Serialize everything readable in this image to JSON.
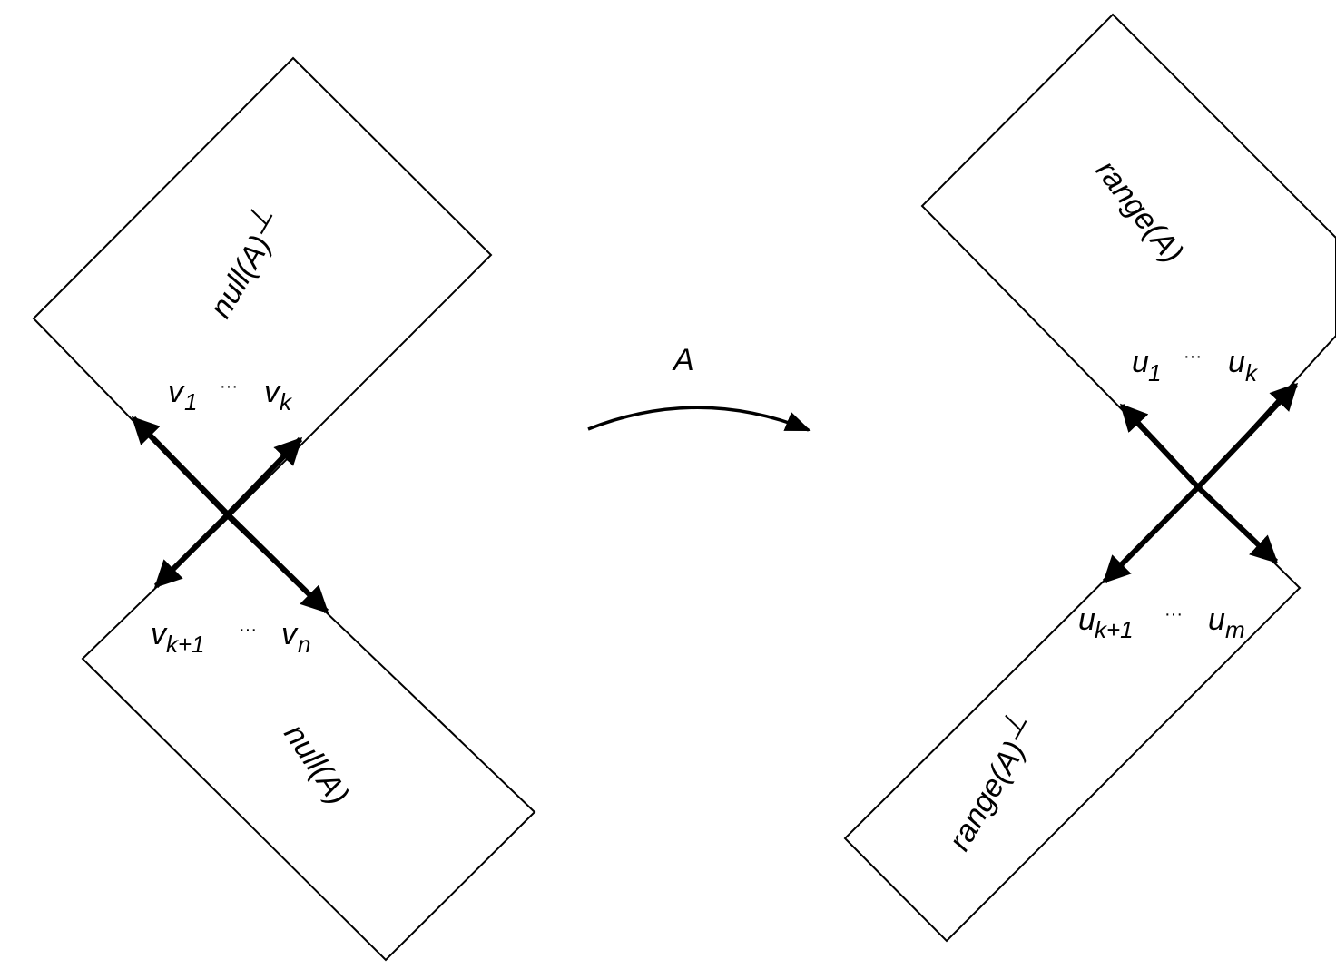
{
  "left": {
    "upper_label": "null(A)",
    "upper_sup": "⊥",
    "lower_label": "null(A)",
    "v_upper": {
      "sym1": "v",
      "sub1": "1",
      "dots": "···",
      "sym2": "v",
      "sub2": "k"
    },
    "v_lower": {
      "sym1": "v",
      "sub1": "k+1",
      "dots": "···",
      "sym2": "v",
      "sub2": "n"
    }
  },
  "map": {
    "label": "A"
  },
  "right": {
    "upper_label": "range(A)",
    "lower_label": "range(A)",
    "lower_sup": "⊥",
    "u_upper": {
      "sym1": "u",
      "sub1": "1",
      "dots": "···",
      "sym2": "u",
      "sub2": "k"
    },
    "u_lower": {
      "sym1": "u",
      "sub1": "k+1",
      "dots": "···",
      "sym2": "u",
      "sub2": "m"
    }
  }
}
